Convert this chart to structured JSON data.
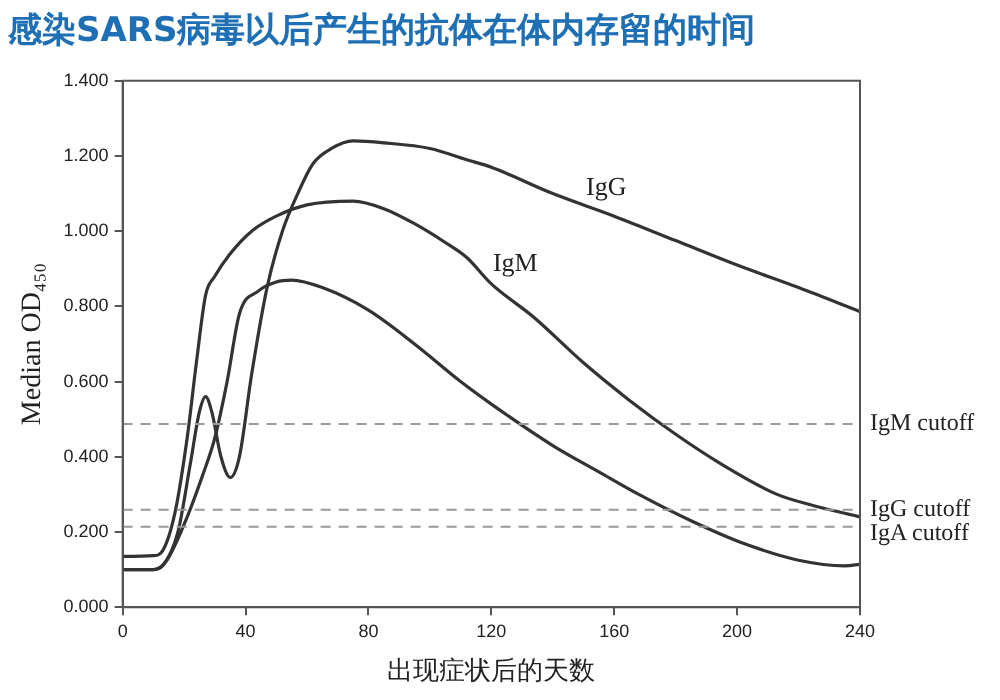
{
  "chart_data": {
    "type": "line",
    "title": "感染SARS病毒以后产生的抗体在体内存留的时间",
    "xlabel": "出现症状后的天数",
    "ylabel": "Median OD₄₅₀",
    "xlim": [
      0,
      240
    ],
    "xticks": [
      0,
      40,
      80,
      120,
      160,
      200,
      240
    ],
    "ylim": [
      0,
      1.4
    ],
    "yticks": [
      {
        "value": 0,
        "label": "0.000"
      },
      {
        "value": 0.2,
        "label": "0.200"
      },
      {
        "value": 0.4,
        "label": "0.400"
      },
      {
        "value": 0.6,
        "label": "0.600"
      },
      {
        "value": 0.8,
        "label": "0.800"
      },
      {
        "value": 1,
        "label": "1.000"
      },
      {
        "value": 1.2,
        "label": "1.200"
      },
      {
        "value": 1.4,
        "label": "1.400"
      }
    ],
    "grid": false,
    "legend": false,
    "marker": "none",
    "line_style": "solid",
    "series": [
      {
        "name": "IgG",
        "color": "#333333",
        "x": [
          0,
          5,
          10,
          13,
          18,
          22,
          25,
          27,
          29,
          32,
          35,
          38,
          42,
          47,
          52,
          57,
          62,
          68,
          75,
          85,
          100,
          112,
          120,
          140,
          160,
          180,
          200,
          220,
          240
        ],
        "values": [
          0.1,
          0.1,
          0.1,
          0.11,
          0.2,
          0.38,
          0.52,
          0.56,
          0.52,
          0.4,
          0.345,
          0.4,
          0.62,
          0.85,
          1.0,
          1.1,
          1.18,
          1.22,
          1.24,
          1.235,
          1.22,
          1.19,
          1.17,
          1.1,
          1.04,
          0.975,
          0.91,
          0.85,
          0.786
        ]
      },
      {
        "name": "IgM",
        "color": "#333333",
        "x": [
          0,
          10,
          13,
          17,
          21,
          24,
          27,
          30,
          35,
          42,
          50,
          60,
          75,
          85,
          95,
          105,
          112,
          120,
          134,
          150,
          165,
          180,
          195,
          213,
          225,
          240
        ],
        "values": [
          0.135,
          0.137,
          0.15,
          0.25,
          0.45,
          0.65,
          0.83,
          0.88,
          0.94,
          1.0,
          1.04,
          1.07,
          1.08,
          1.06,
          1.02,
          0.97,
          0.93,
          0.86,
          0.77,
          0.65,
          0.55,
          0.46,
          0.38,
          0.3,
          0.27,
          0.24
        ]
      },
      {
        "color": "#333333",
        "x": [
          0,
          10,
          14,
          20,
          26,
          30,
          34,
          38,
          44,
          50,
          55,
          65,
          80,
          95,
          110,
          120,
          140,
          155,
          168,
          185,
          202,
          220,
          235,
          240
        ],
        "values": [
          0.1,
          0.1,
          0.12,
          0.22,
          0.35,
          0.45,
          0.6,
          0.78,
          0.84,
          0.865,
          0.87,
          0.85,
          0.79,
          0.7,
          0.6,
          0.54,
          0.43,
          0.36,
          0.3,
          0.23,
          0.17,
          0.125,
          0.11,
          0.114
        ]
      }
    ],
    "ref_lines": [
      {
        "axis": "y",
        "value": 0.487,
        "label": "IgM cutoff",
        "color": "#999999",
        "line_style": "dashed"
      },
      {
        "axis": "y",
        "value": 0.259,
        "label": "IgG cutoff",
        "color": "#999999",
        "line_style": "dashed"
      },
      {
        "axis": "y",
        "value": 0.214,
        "label": "IgA cutoff",
        "color": "#999999",
        "line_style": "dashed"
      }
    ]
  }
}
